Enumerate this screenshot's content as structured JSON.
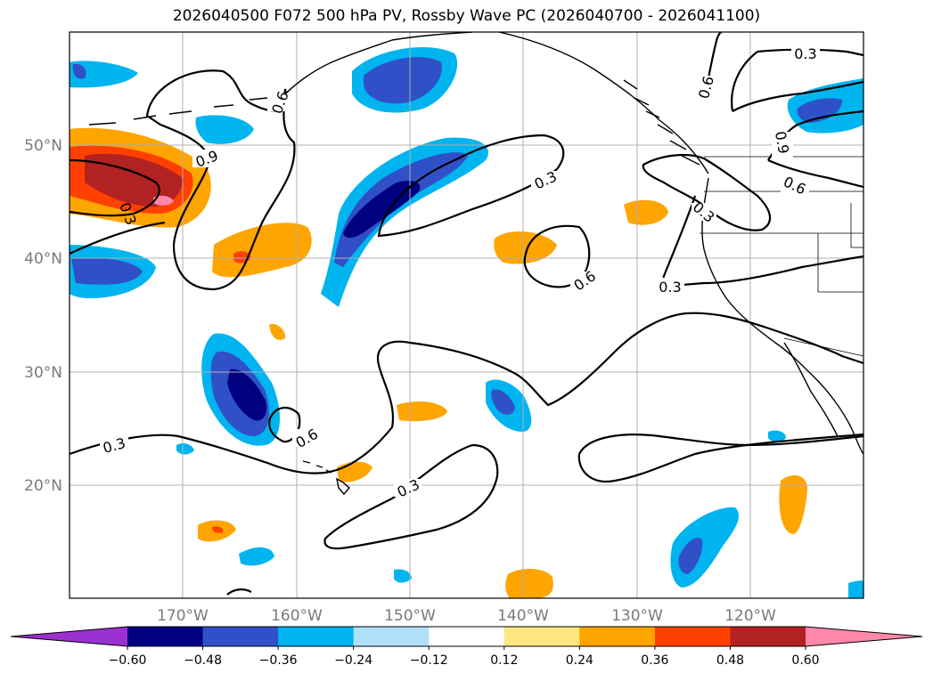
{
  "title": "2026040500 F072 500 hPa PV, Rossby Wave PC (2026040700 - 2026041100)",
  "colors": {
    "background": "#ffffff",
    "grid": "#b0b0b0",
    "frame": "#000000",
    "coast": "#000000",
    "contour": "#000000",
    "tick_label": "#7a7a7a"
  },
  "map": {
    "lat_labels": [
      "50°N",
      "40°N",
      "30°N",
      "20°N"
    ],
    "lon_labels": [
      "170°W",
      "160°W",
      "150°W",
      "140°W",
      "130°W",
      "120°W"
    ]
  },
  "colorbar": {
    "ticks": [
      "−0.60",
      "−0.48",
      "−0.36",
      "−0.24",
      "−0.12",
      "0.12",
      "0.24",
      "0.36",
      "0.48",
      "0.60"
    ],
    "colors": [
      "#9b30d0",
      "#000080",
      "#3050c8",
      "#00b4f0",
      "#aee0f8",
      "#ffffff",
      "#ffe680",
      "#ffa500",
      "#ff4000",
      "#b22222",
      "#ff88aa"
    ]
  },
  "contour_labels": [
    {
      "text": "0.3",
      "id": "label-0.3-top-right"
    },
    {
      "text": "0.6",
      "id": "label-0.6-nw"
    },
    {
      "text": "0.9",
      "id": "label-0.9-west"
    },
    {
      "text": "0.3",
      "id": "label-0.3-west"
    },
    {
      "text": "0.3",
      "id": "label-0.3-mid"
    },
    {
      "text": "0.6",
      "id": "label-0.6-mid"
    },
    {
      "text": "0.3",
      "id": "label-0.3-coast"
    },
    {
      "text": "0.3",
      "id": "label-0.3-coast2"
    },
    {
      "text": "0.6",
      "id": "label-0.6-east"
    },
    {
      "text": "0.9",
      "id": "label-0.9-east"
    },
    {
      "text": "0.6",
      "id": "label-0.6-ne"
    },
    {
      "text": "0.6",
      "id": "label-0.6-south"
    },
    {
      "text": "0.3",
      "id": "label-0.3-sw"
    },
    {
      "text": "0.3",
      "id": "label-0.3-south"
    }
  ]
}
